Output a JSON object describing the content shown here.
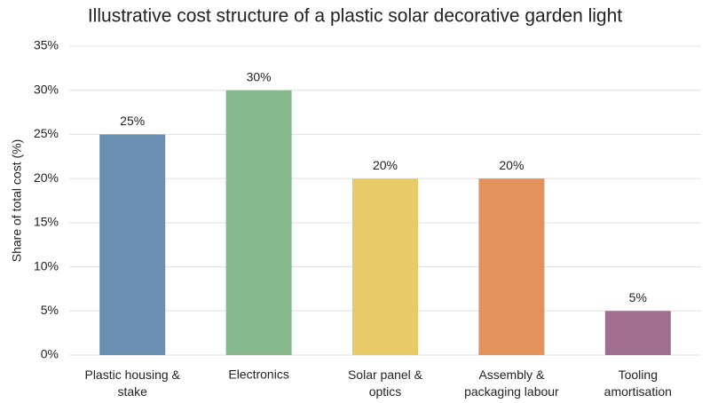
{
  "chart_data": {
    "type": "bar",
    "title": "Illustrative cost structure of a plastic solar decorative garden light",
    "y_label": "Share of total cost (%)",
    "categories": [
      "Plastic housing &\nstake",
      "Electronics",
      "Solar panel &\noptics",
      "Assembly &\npackaging labour",
      "Tooling\namortisation"
    ],
    "values": [
      25,
      30,
      20,
      20,
      5
    ],
    "value_labels": [
      "25%",
      "30%",
      "20%",
      "20%",
      "5%"
    ],
    "colors": [
      "#6b8fb3",
      "#86b98e",
      "#e8cb67",
      "#e4925b",
      "#a06e8f"
    ],
    "ylim": [
      0,
      35
    ],
    "yticks": [
      {
        "value": 0,
        "label": "0%"
      },
      {
        "value": 5,
        "label": "5%"
      },
      {
        "value": 10,
        "label": "10%"
      },
      {
        "value": 15,
        "label": "15%"
      },
      {
        "value": 20,
        "label": "20%"
      },
      {
        "value": 25,
        "label": "25%"
      },
      {
        "value": 30,
        "label": "30%"
      },
      {
        "value": 35,
        "label": "35%"
      }
    ],
    "grid": true
  }
}
